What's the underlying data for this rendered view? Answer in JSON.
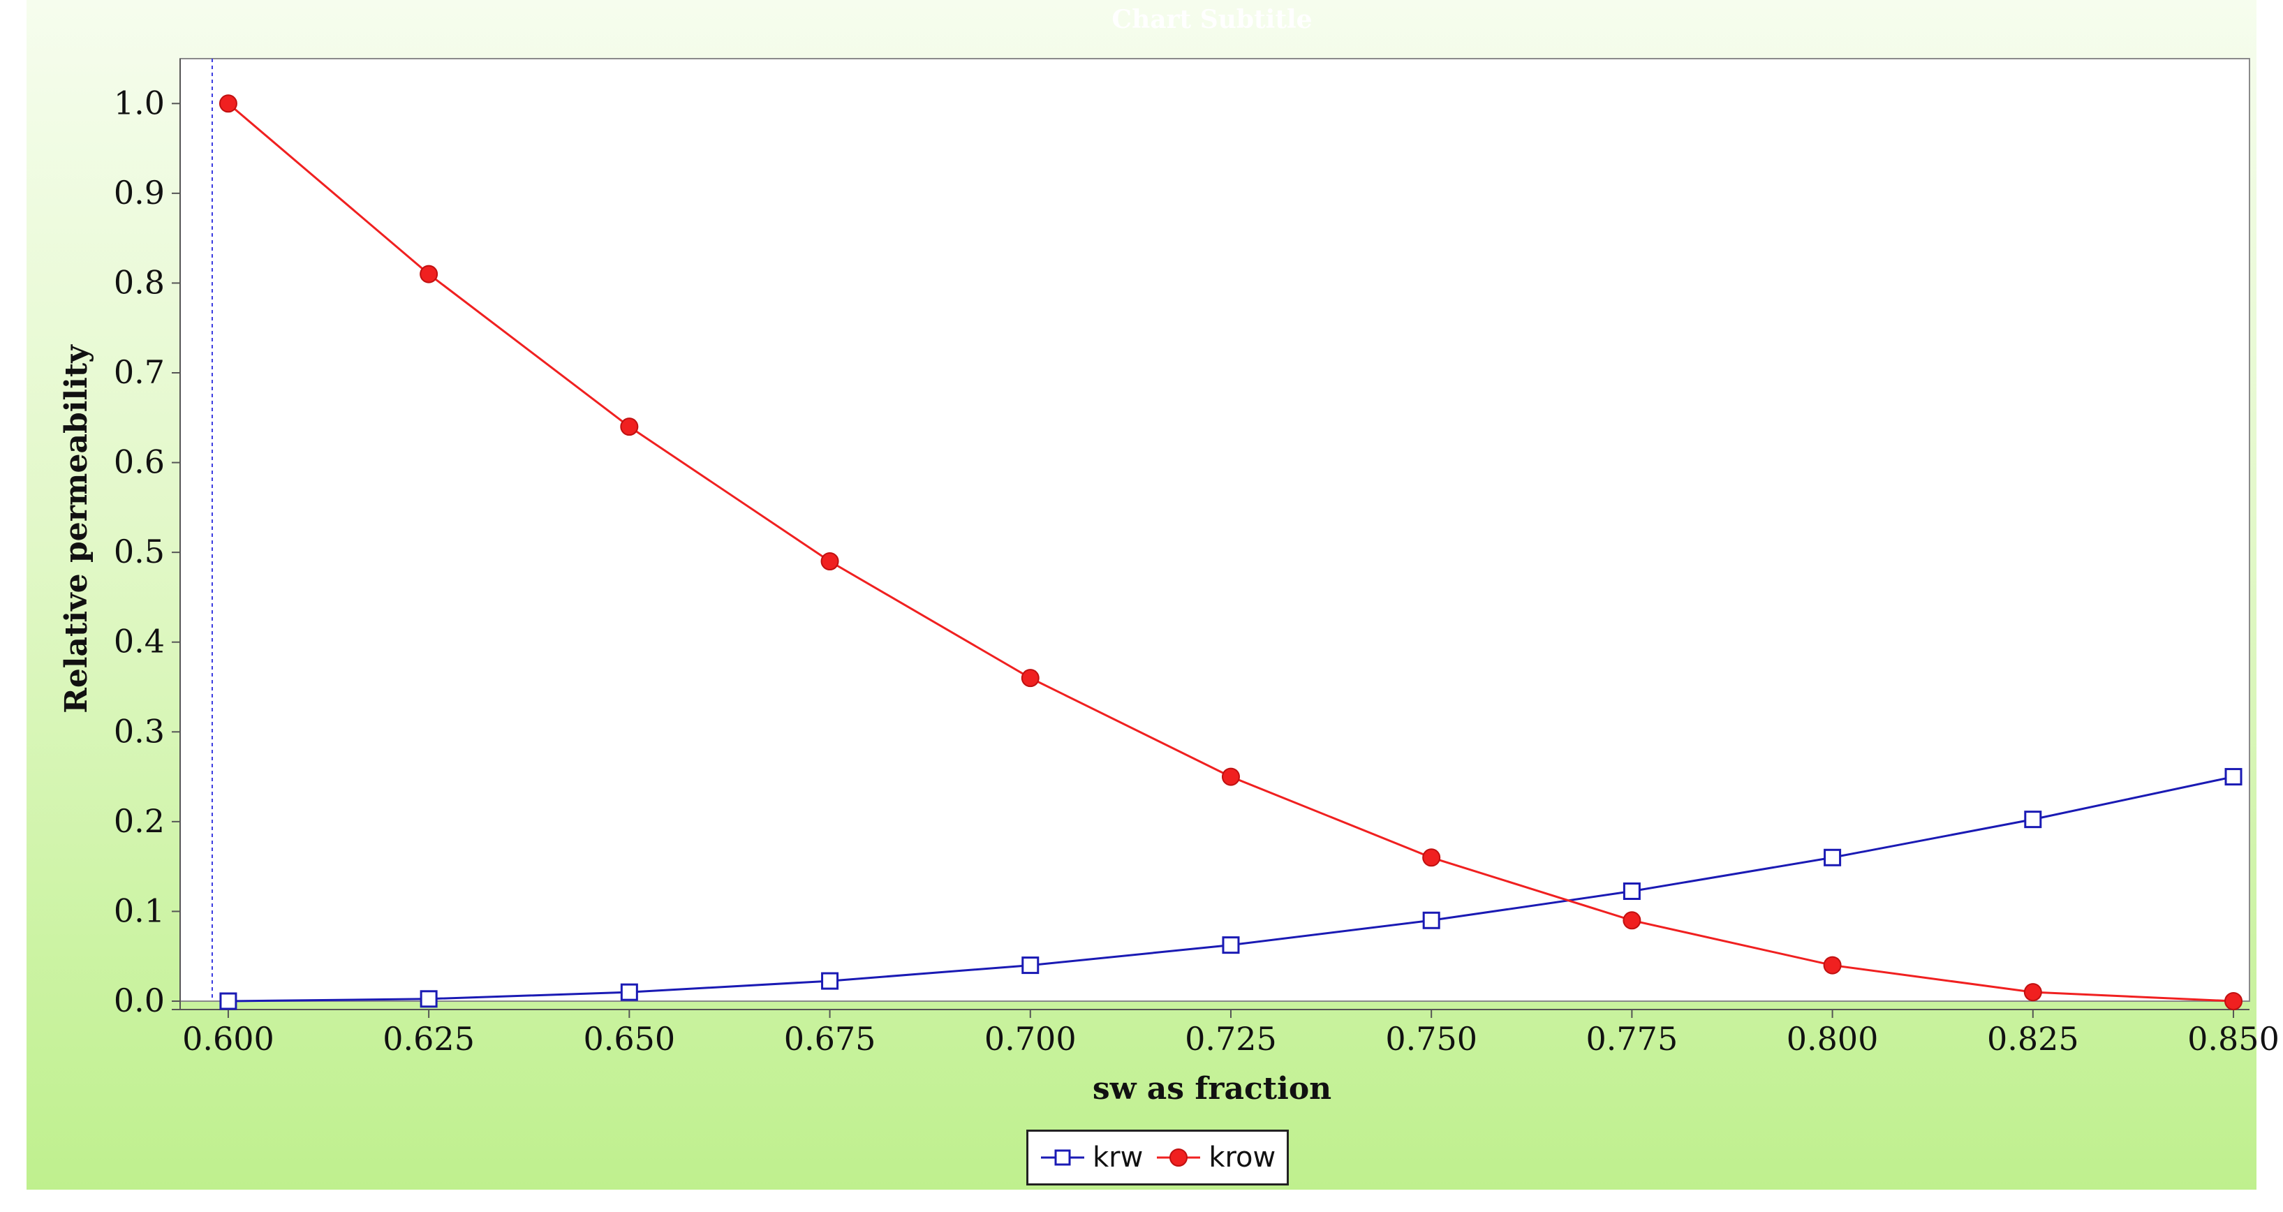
{
  "chart_data": {
    "type": "line",
    "title": "Chart Subtitle",
    "xlabel": "sw as fraction",
    "ylabel": "Relative permeability",
    "xlim": [
      0.594,
      0.852
    ],
    "ylim": [
      0.0,
      1.05
    ],
    "x_ticks": [
      "0.600",
      "0.625",
      "0.650",
      "0.675",
      "0.700",
      "0.725",
      "0.750",
      "0.775",
      "0.800",
      "0.825",
      "0.850"
    ],
    "y_ticks": [
      "0.0",
      "0.1",
      "0.2",
      "0.3",
      "0.4",
      "0.5",
      "0.6",
      "0.7",
      "0.8",
      "0.9",
      "1.0"
    ],
    "x": [
      0.6,
      0.625,
      0.65,
      0.675,
      0.7,
      0.725,
      0.75,
      0.775,
      0.8,
      0.825,
      0.85
    ],
    "series": [
      {
        "name": "krw",
        "color": "#1a1ab4",
        "marker": "open-square",
        "values": [
          0.0,
          0.0025,
          0.01,
          0.0225,
          0.04,
          0.0625,
          0.09,
          0.1225,
          0.16,
          0.2025,
          0.25
        ]
      },
      {
        "name": "krow",
        "color": "#f02020",
        "marker": "filled-circle",
        "values": [
          1.0,
          0.81,
          0.64,
          0.49,
          0.36,
          0.25,
          0.16,
          0.09,
          0.04,
          0.01,
          0.0
        ]
      }
    ],
    "marker_line_x": 0.598,
    "grid": false,
    "legend_position": "bottom-center"
  }
}
